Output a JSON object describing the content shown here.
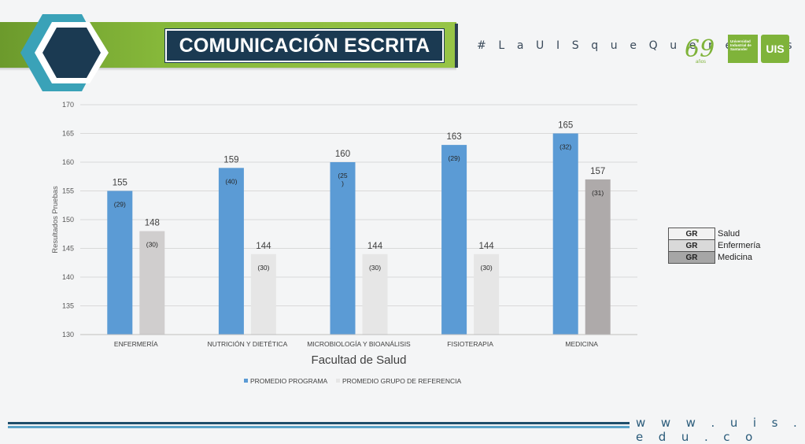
{
  "header": {
    "title": "COMUNICACIÓN ESCRITA",
    "hashtag": "# L a U I S q u e Q u e r e m o s",
    "anniversary_number": "69",
    "anniversary_word": "años",
    "university_name": "Universidad Industrial de Santander",
    "logo_text": "UIS"
  },
  "legend_table": {
    "rows": [
      {
        "code": "GR",
        "label": "Salud",
        "color": "#f2f2f2"
      },
      {
        "code": "GR",
        "label": "Enfermería",
        "color": "#d9d9d9"
      },
      {
        "code": "GR",
        "label": "Medicina",
        "color": "#a6a6a6"
      }
    ]
  },
  "footer": {
    "website": "w w w . u i s . e d u . c o"
  },
  "chart_data": {
    "type": "bar",
    "title": "",
    "xlabel": "Facultad de Salud",
    "ylabel": "Resultados Pruebas",
    "ylim": [
      130,
      170
    ],
    "yticks": [
      130,
      135,
      140,
      145,
      150,
      155,
      160,
      165,
      170
    ],
    "grid": true,
    "legend_position": "bottom",
    "categories": [
      "ENFERMERÍA",
      "NUTRICIÓN Y DIETÉTICA",
      "MICROBIOLOGÍA Y BIOANÁLISIS",
      "FISIOTERAPIA",
      "MEDICINA"
    ],
    "series": [
      {
        "name": "PROMEDIO PROGRAMA",
        "color": "#5b9bd5",
        "values": [
          155,
          159,
          160,
          163,
          165
        ],
        "inner_labels": [
          "(29)",
          "(40)",
          "(25\n)",
          "(29)",
          "(32)"
        ]
      },
      {
        "name": "PROMEDIO GRUPO DE REFERENCIA",
        "colors": [
          "#d0cece",
          "#e6e6e6",
          "#e6e6e6",
          "#e6e6e6",
          "#aeaaaa"
        ],
        "color": "#e6e6e6",
        "values": [
          148,
          144,
          144,
          144,
          157
        ],
        "inner_labels": [
          "(30)",
          "(30)",
          "(30)",
          "(30)",
          "(31)"
        ]
      }
    ]
  }
}
